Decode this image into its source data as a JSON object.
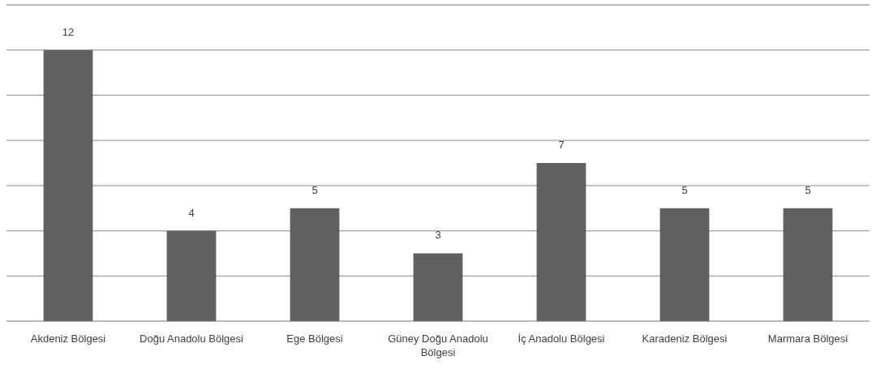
{
  "chart_data": {
    "type": "bar",
    "categories": [
      "Akdeniz Bölgesi",
      "Doğu Anadolu Bölgesi",
      "Ege Bölgesi",
      "Güney Doğu Anadolu Bölgesi",
      "İç Anadolu Bölgesi",
      "Karadeniz Bölgesi",
      "Marmara Bölgesi"
    ],
    "values": [
      12,
      4,
      5,
      3,
      7,
      5,
      5
    ],
    "color": "#606060",
    "ylim": [
      0,
      14
    ],
    "yticks": [
      {
        "value": 0,
        "label": null
      },
      {
        "value": 2,
        "label": null
      },
      {
        "value": 4,
        "label": null
      },
      {
        "value": 6,
        "label": null
      },
      {
        "value": 8,
        "label": null
      },
      {
        "value": 10,
        "label": null
      },
      {
        "value": 12,
        "label": null
      },
      {
        "value": 14,
        "label": null
      }
    ],
    "grid": "y",
    "tick_labels": "x",
    "data_labels": true
  }
}
